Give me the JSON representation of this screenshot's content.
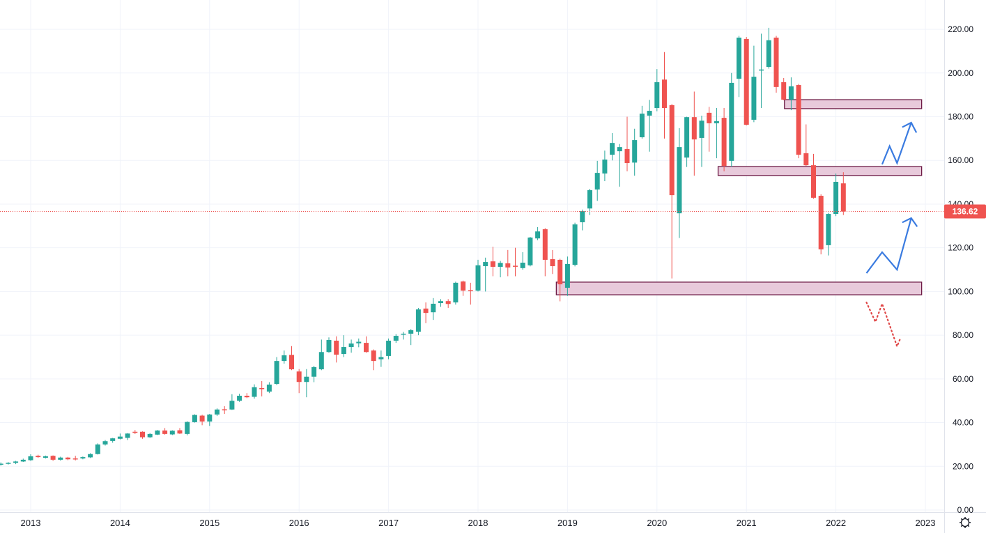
{
  "chart_data": {
    "type": "candlestick",
    "title": "",
    "interval": "monthly",
    "start_month": "2012-09",
    "ohlc_fields": [
      "open",
      "high",
      "low",
      "close"
    ],
    "candles": [
      [
        20.8,
        21.8,
        20.3,
        21.2
      ],
      [
        21.2,
        21.9,
        20.8,
        21.6
      ],
      [
        21.6,
        22.5,
        21.0,
        22.2
      ],
      [
        22.2,
        23.5,
        22.0,
        23.0
      ],
      [
        22.8,
        25.5,
        22.5,
        24.6
      ],
      [
        24.8,
        25.3,
        23.9,
        24.2
      ],
      [
        23.9,
        24.9,
        23.6,
        24.6
      ],
      [
        24.8,
        25.0,
        22.5,
        23.0
      ],
      [
        23.0,
        24.4,
        22.6,
        24.0
      ],
      [
        24.0,
        24.3,
        22.8,
        23.2
      ],
      [
        23.6,
        24.8,
        22.7,
        23.5
      ],
      [
        23.6,
        24.5,
        23.2,
        24.2
      ],
      [
        24.1,
        26.0,
        23.8,
        25.6
      ],
      [
        25.6,
        30.5,
        25.4,
        30.0
      ],
      [
        30.0,
        32.0,
        29.5,
        31.5
      ],
      [
        31.6,
        33.0,
        30.8,
        32.8
      ],
      [
        32.6,
        35.0,
        32.3,
        33.6
      ],
      [
        33.0,
        35.2,
        32.0,
        35.0
      ],
      [
        35.8,
        36.6,
        34.8,
        35.6
      ],
      [
        35.8,
        36.0,
        32.6,
        33.3
      ],
      [
        33.3,
        35.2,
        33.0,
        34.8
      ],
      [
        34.5,
        36.6,
        34.3,
        36.4
      ],
      [
        36.4,
        37.5,
        34.5,
        34.8
      ],
      [
        34.6,
        36.5,
        34.3,
        36.3
      ],
      [
        36.5,
        37.5,
        34.8,
        35.0
      ],
      [
        34.8,
        40.6,
        34.2,
        40.3
      ],
      [
        40.2,
        43.8,
        40.0,
        43.5
      ],
      [
        43.2,
        43.6,
        38.8,
        40.5
      ],
      [
        40.5,
        44.0,
        38.5,
        43.7
      ],
      [
        43.7,
        46.5,
        43.0,
        46.0
      ],
      [
        46.1,
        47.5,
        44.0,
        45.9
      ],
      [
        46.0,
        53.0,
        45.8,
        50.0
      ],
      [
        50.0,
        53.2,
        49.5,
        52.3
      ],
      [
        52.3,
        53.5,
        51.2,
        51.6
      ],
      [
        51.8,
        57.5,
        51.0,
        56.2
      ],
      [
        55.8,
        59.0,
        52.0,
        55.4
      ],
      [
        54.2,
        58.5,
        53.5,
        57.4
      ],
      [
        57.7,
        70.0,
        57.2,
        68.2
      ],
      [
        68.2,
        73.0,
        67.0,
        70.8
      ],
      [
        71.0,
        75.0,
        64.0,
        64.4
      ],
      [
        63.4,
        64.5,
        53.5,
        58.6
      ],
      [
        58.6,
        64.5,
        51.6,
        61.0
      ],
      [
        61.0,
        66.0,
        58.5,
        65.4
      ],
      [
        64.4,
        78.0,
        64.0,
        72.3
      ],
      [
        72.3,
        79.0,
        72.0,
        77.8
      ],
      [
        77.5,
        79.5,
        67.5,
        71.1
      ],
      [
        71.4,
        80.0,
        70.0,
        74.6
      ],
      [
        74.6,
        78.0,
        72.0,
        76.2
      ],
      [
        76.3,
        78.5,
        74.5,
        77.0
      ],
      [
        76.5,
        79.5,
        72.0,
        72.3
      ],
      [
        73.0,
        73.5,
        64.0,
        68.2
      ],
      [
        69.0,
        73.0,
        65.5,
        70.0
      ],
      [
        70.5,
        78.5,
        69.0,
        77.5
      ],
      [
        77.5,
        80.5,
        76.5,
        79.7
      ],
      [
        80.4,
        81.5,
        78.0,
        80.7
      ],
      [
        80.7,
        82.8,
        75.5,
        82.3
      ],
      [
        81.6,
        92.5,
        80.0,
        91.8
      ],
      [
        92.2,
        95.0,
        85.5,
        90.2
      ],
      [
        90.5,
        97.0,
        87.0,
        94.4
      ],
      [
        94.7,
        96.5,
        93.0,
        95.6
      ],
      [
        95.6,
        96.5,
        92.5,
        94.3
      ],
      [
        95.0,
        104.5,
        94.0,
        104.0
      ],
      [
        104.6,
        105.0,
        98.0,
        100.4
      ],
      [
        100.6,
        104.0,
        94.0,
        100.4
      ],
      [
        100.4,
        114.5,
        100.0,
        112.0
      ],
      [
        111.6,
        115.5,
        100.0,
        113.5
      ],
      [
        113.8,
        120.5,
        107.0,
        111.3
      ],
      [
        111.3,
        114.0,
        106.5,
        113.1
      ],
      [
        112.9,
        119.0,
        107.0,
        111.0
      ],
      [
        111.8,
        120.0,
        107.0,
        111.4
      ],
      [
        110.7,
        118.0,
        110.0,
        113.2
      ],
      [
        112.0,
        125.0,
        111.5,
        124.7
      ],
      [
        124.3,
        129.5,
        123.5,
        127.5
      ],
      [
        128.5,
        129.0,
        107.0,
        114.5
      ],
      [
        114.8,
        119.0,
        108.0,
        111.6
      ],
      [
        114.5,
        115.0,
        95.5,
        103.3
      ],
      [
        101.7,
        116.0,
        98.0,
        112.6
      ],
      [
        112.2,
        131.5,
        111.5,
        130.7
      ],
      [
        131.7,
        137.5,
        128.0,
        136.8
      ],
      [
        138.0,
        147.0,
        135.0,
        146.4
      ],
      [
        146.7,
        159.8,
        141.5,
        154.3
      ],
      [
        154.0,
        164.5,
        150.5,
        160.4
      ],
      [
        162.6,
        172.5,
        160.0,
        168.0
      ],
      [
        164.2,
        167.5,
        148.0,
        166.1
      ],
      [
        165.2,
        180.0,
        155.0,
        158.8
      ],
      [
        159.0,
        174.5,
        153.0,
        169.3
      ],
      [
        170.6,
        185.0,
        170.0,
        181.4
      ],
      [
        180.5,
        187.7,
        164.0,
        182.7
      ],
      [
        184.0,
        201.8,
        182.5,
        195.8
      ],
      [
        197.0,
        209.6,
        170.0,
        184.0
      ],
      [
        185.3,
        185.8,
        106.0,
        144.1
      ],
      [
        135.8,
        174.8,
        124.5,
        166.1
      ],
      [
        161.3,
        180.0,
        157.0,
        179.8
      ],
      [
        179.8,
        191.5,
        153.0,
        169.6
      ],
      [
        170.3,
        180.5,
        157.0,
        178.2
      ],
      [
        181.8,
        184.5,
        164.0,
        177.0
      ],
      [
        177.0,
        184.0,
        161.0,
        178.0
      ],
      [
        179.5,
        184.0,
        155.0,
        157.5
      ],
      [
        159.8,
        200.0,
        157.0,
        195.5
      ],
      [
        197.4,
        217.0,
        189.0,
        216.2
      ],
      [
        215.6,
        216.5,
        176.0,
        176.3
      ],
      [
        178.6,
        212.5,
        177.5,
        198.3
      ],
      [
        201.3,
        218.0,
        184.0,
        201.6
      ],
      [
        202.8,
        220.7,
        202.0,
        215.0
      ],
      [
        216.2,
        217.0,
        191.0,
        193.6
      ],
      [
        195.8,
        197.7,
        187.5,
        187.8
      ],
      [
        187.8,
        198.0,
        183.0,
        193.9
      ],
      [
        194.5,
        195.0,
        161.0,
        162.6
      ],
      [
        163.3,
        176.5,
        157.5,
        157.8
      ],
      [
        157.8,
        163.0,
        142.5,
        142.9
      ],
      [
        143.8,
        144.5,
        117.0,
        119.3
      ],
      [
        121.2,
        136.0,
        116.5,
        135.5
      ],
      [
        135.5,
        154.0,
        134.5,
        150.2
      ],
      [
        149.5,
        154.6,
        135.0,
        136.62
      ]
    ],
    "last_price": 136.62,
    "last_price_label": "136.62",
    "ylim": [
      0,
      225
    ],
    "y_ticks": [
      "0.00",
      "20.00",
      "40.00",
      "60.00",
      "80.00",
      "100.00",
      "120.00",
      "140.00",
      "160.00",
      "180.00",
      "200.00",
      "220.00"
    ],
    "x_ticks": [
      "2013",
      "2014",
      "2015",
      "2016",
      "2017",
      "2018",
      "2019",
      "2020",
      "2021",
      "2022",
      "2023"
    ],
    "grid": true,
    "colors": {
      "up": "#26a69a",
      "down": "#ef5350",
      "grid": "#f0f3fa",
      "zone_fill": "#e8cadb",
      "zone_border": "#6d1b45",
      "arrow": "#3a7be0",
      "dotted": "#e04848"
    },
    "annotations": {
      "zones": [
        {
          "from_month": 70.5,
          "to_month": 119.5,
          "low": 98.5,
          "high": 104.3
        },
        {
          "from_month": 92.2,
          "to_month": 119.5,
          "low": 153.1,
          "high": 157.2
        },
        {
          "from_month": 101.1,
          "to_month": 119.5,
          "low": 183.7,
          "high": 187.8
        }
      ],
      "upper_zigzag": [
        [
          114.2,
          158.2
        ],
        [
          115.2,
          166.5
        ],
        [
          116.2,
          158.8
        ],
        [
          118.1,
          177.3
        ]
      ],
      "upper_arrowhead": [
        [
          116.9,
          175.2
        ],
        [
          118.1,
          177.3
        ],
        [
          118.8,
          172.7
        ]
      ],
      "lower_zigzag": [
        [
          112.1,
          108.4
        ],
        [
          114.2,
          118.0
        ],
        [
          116.2,
          110.0
        ],
        [
          118.1,
          133.6
        ]
      ],
      "lower_arrowhead": [
        [
          116.9,
          131.6
        ],
        [
          118.1,
          133.6
        ],
        [
          118.9,
          129.7
        ]
      ],
      "dotted_path": [
        [
          112.1,
          95.0
        ],
        [
          113.3,
          86.1
        ],
        [
          114.2,
          94.4
        ],
        [
          116.2,
          74.9
        ],
        [
          116.7,
          79.0
        ]
      ]
    }
  }
}
